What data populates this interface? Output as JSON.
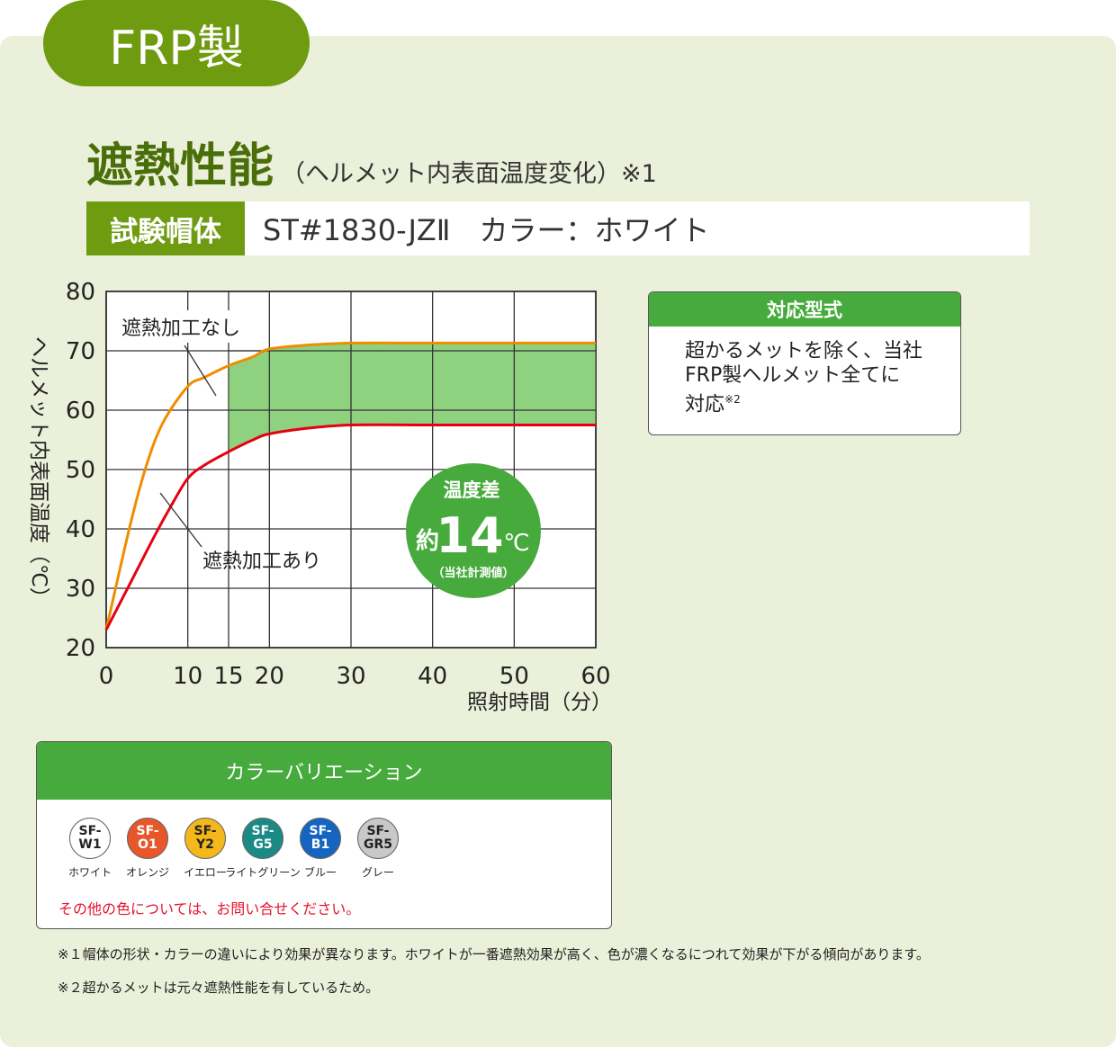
{
  "tag": "FRP製",
  "heading": {
    "main": "遮熱性能",
    "sub": "（ヘルメット内表面温度変化）※1"
  },
  "subject": {
    "label": "試験帽体",
    "model": "ST#1830-JZⅡ　カラー：ホワイト"
  },
  "chart_data": {
    "type": "line",
    "xlabel": "照射時間（分）",
    "ylabel": "ヘルメット内表面温度（℃）",
    "xlim": [
      0,
      60
    ],
    "ylim": [
      20,
      80
    ],
    "x_ticks": [
      0,
      10,
      15,
      20,
      30,
      40,
      50,
      60
    ],
    "y_ticks": [
      20,
      30,
      40,
      50,
      60,
      70,
      80
    ],
    "grid": true,
    "series": [
      {
        "name": "遮熱加工なし",
        "color": "#f08c00",
        "x": [
          0,
          3,
          5,
          7,
          10,
          12,
          15,
          18,
          20,
          25,
          30,
          40,
          50,
          60
        ],
        "y": [
          23,
          41,
          51,
          58,
          64,
          65.5,
          67.5,
          69,
          70.3,
          71,
          71.3,
          71.3,
          71.3,
          71.3
        ]
      },
      {
        "name": "遮熱加工あり",
        "color": "#e60012",
        "x": [
          0,
          3,
          6,
          8,
          10,
          12,
          15,
          18,
          20,
          25,
          30,
          40,
          50,
          60
        ],
        "y": [
          23,
          31,
          39,
          44,
          48.5,
          50.7,
          53,
          55,
          56,
          57,
          57.5,
          57.5,
          57.5,
          57.5
        ]
      }
    ],
    "highlight": {
      "x_from": 15,
      "x_to": 60,
      "color": "#8ed17f"
    },
    "badge": {
      "line1": "温度差",
      "prefix": "約",
      "number": "14",
      "unit": "℃",
      "note": "（当社計測値）",
      "color": "#46ab3c"
    }
  },
  "compat": {
    "header": "対応型式",
    "line1": "超かるメットを除く、当社",
    "line2": "FRP製ヘルメット全てに",
    "line3": "対応",
    "sup": "※2"
  },
  "colors": {
    "header": "カラーバリエーション",
    "items": [
      {
        "code1": "SF-",
        "code2": "W1",
        "name": "ホワイト",
        "bg": "#ffffff",
        "fg": "#222222"
      },
      {
        "code1": "SF-",
        "code2": "O1",
        "name": "オレンジ",
        "bg": "#e8572a",
        "fg": "#ffffff"
      },
      {
        "code1": "SF-",
        "code2": "Y2",
        "name": "イエロー",
        "bg": "#f5b81a",
        "fg": "#222222"
      },
      {
        "code1": "SF-",
        "code2": "G5",
        "name": "ライトグリーン",
        "bg": "#1b8a86",
        "fg": "#ffffff"
      },
      {
        "code1": "SF-",
        "code2": "B1",
        "name": "ブルー",
        "bg": "#1565c0",
        "fg": "#ffffff"
      },
      {
        "code1": "SF-",
        "code2": "GR5",
        "name": "グレー",
        "bg": "#c8c8c8",
        "fg": "#222222"
      }
    ],
    "note": "その他の色については、お問い合せください。"
  },
  "footnotes": [
    "※１帽体の形状・カラーの違いにより効果が異なります。ホワイトが一番遮熱効果が高く、色が濃くなるにつれて効果が下がる傾向があります。",
    "※２超かるメットは元々遮熱性能を有しているため。"
  ]
}
